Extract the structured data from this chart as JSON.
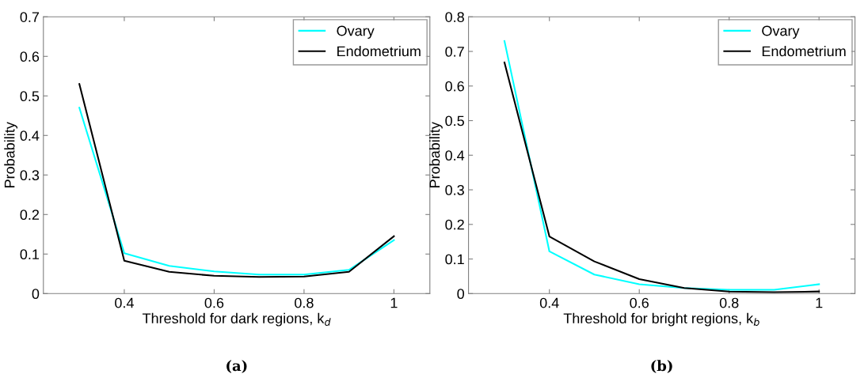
{
  "chart_data": [
    {
      "type": "line",
      "xlabel": "Threshold for dark regions, k$_{d}$",
      "ylabel": "Probability",
      "x": [
        0.3,
        0.4,
        0.5,
        0.6,
        0.7,
        0.8,
        0.9,
        1.0
      ],
      "series": [
        {
          "name": "Ovary",
          "color": "#00ffff",
          "values": [
            0.47,
            0.102,
            0.07,
            0.056,
            0.048,
            0.048,
            0.06,
            0.135
          ]
        },
        {
          "name": "Endometrium",
          "color": "#000000",
          "values": [
            0.53,
            0.083,
            0.055,
            0.045,
            0.042,
            0.043,
            0.055,
            0.145
          ]
        }
      ],
      "xlim": [
        0.22,
        1.08
      ],
      "xticks": [
        0.4,
        0.6,
        0.8,
        1
      ],
      "ylim": [
        0,
        0.7
      ],
      "yticks": [
        0,
        0.1,
        0.2,
        0.3,
        0.4,
        0.5,
        0.6,
        0.7
      ],
      "legend": "top right",
      "grid": false,
      "annotations": [
        "(a)"
      ]
    },
    {
      "type": "line",
      "xlabel": "Threshold for bright regions, k$_{b}$",
      "ylabel": "Probability",
      "x": [
        0.3,
        0.4,
        0.5,
        0.6,
        0.7,
        0.8,
        0.9,
        1.0
      ],
      "series": [
        {
          "name": "Ovary",
          "color": "#00ffff",
          "values": [
            0.73,
            0.122,
            0.055,
            0.027,
            0.016,
            0.011,
            0.011,
            0.027
          ]
        },
        {
          "name": "Endometrium",
          "color": "#000000",
          "values": [
            0.668,
            0.165,
            0.093,
            0.042,
            0.016,
            0.006,
            0.004,
            0.006
          ]
        }
      ],
      "xlim": [
        0.22,
        1.08
      ],
      "xticks": [
        0.4,
        0.6,
        0.8,
        1
      ],
      "ylim": [
        0,
        0.8
      ],
      "yticks": [
        0,
        0.1,
        0.2,
        0.3,
        0.4,
        0.5,
        0.6,
        0.7,
        0.8
      ],
      "legend": "top right",
      "grid": false,
      "annotations": [
        "(b)"
      ]
    }
  ]
}
